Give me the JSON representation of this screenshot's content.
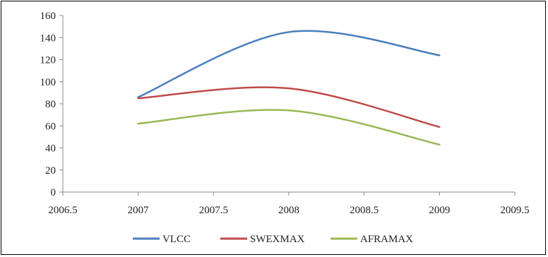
{
  "chart_data": {
    "type": "line",
    "title": "",
    "xlabel": "",
    "ylabel": "",
    "x": [
      2007,
      2008,
      2009
    ],
    "xlim": [
      2006.5,
      2009.5
    ],
    "ylim": [
      0,
      160
    ],
    "xticks": [
      "2006.5",
      "2007",
      "2007.5",
      "2008",
      "2008.5",
      "2009",
      "2009.5"
    ],
    "yticks": [
      "0",
      "20",
      "40",
      "60",
      "80",
      "100",
      "120",
      "140",
      "160"
    ],
    "grid": false,
    "legend_position": "bottom",
    "smooth": true,
    "series": [
      {
        "name": "VLCC",
        "color": "#4a7ebb",
        "values": [
          86,
          145,
          124
        ]
      },
      {
        "name": "SWEXMAX",
        "color": "#be4b48",
        "values": [
          85,
          94,
          59
        ]
      },
      {
        "name": "AFRAMAX",
        "color": "#98b954",
        "values": [
          62,
          74,
          43
        ]
      }
    ]
  }
}
